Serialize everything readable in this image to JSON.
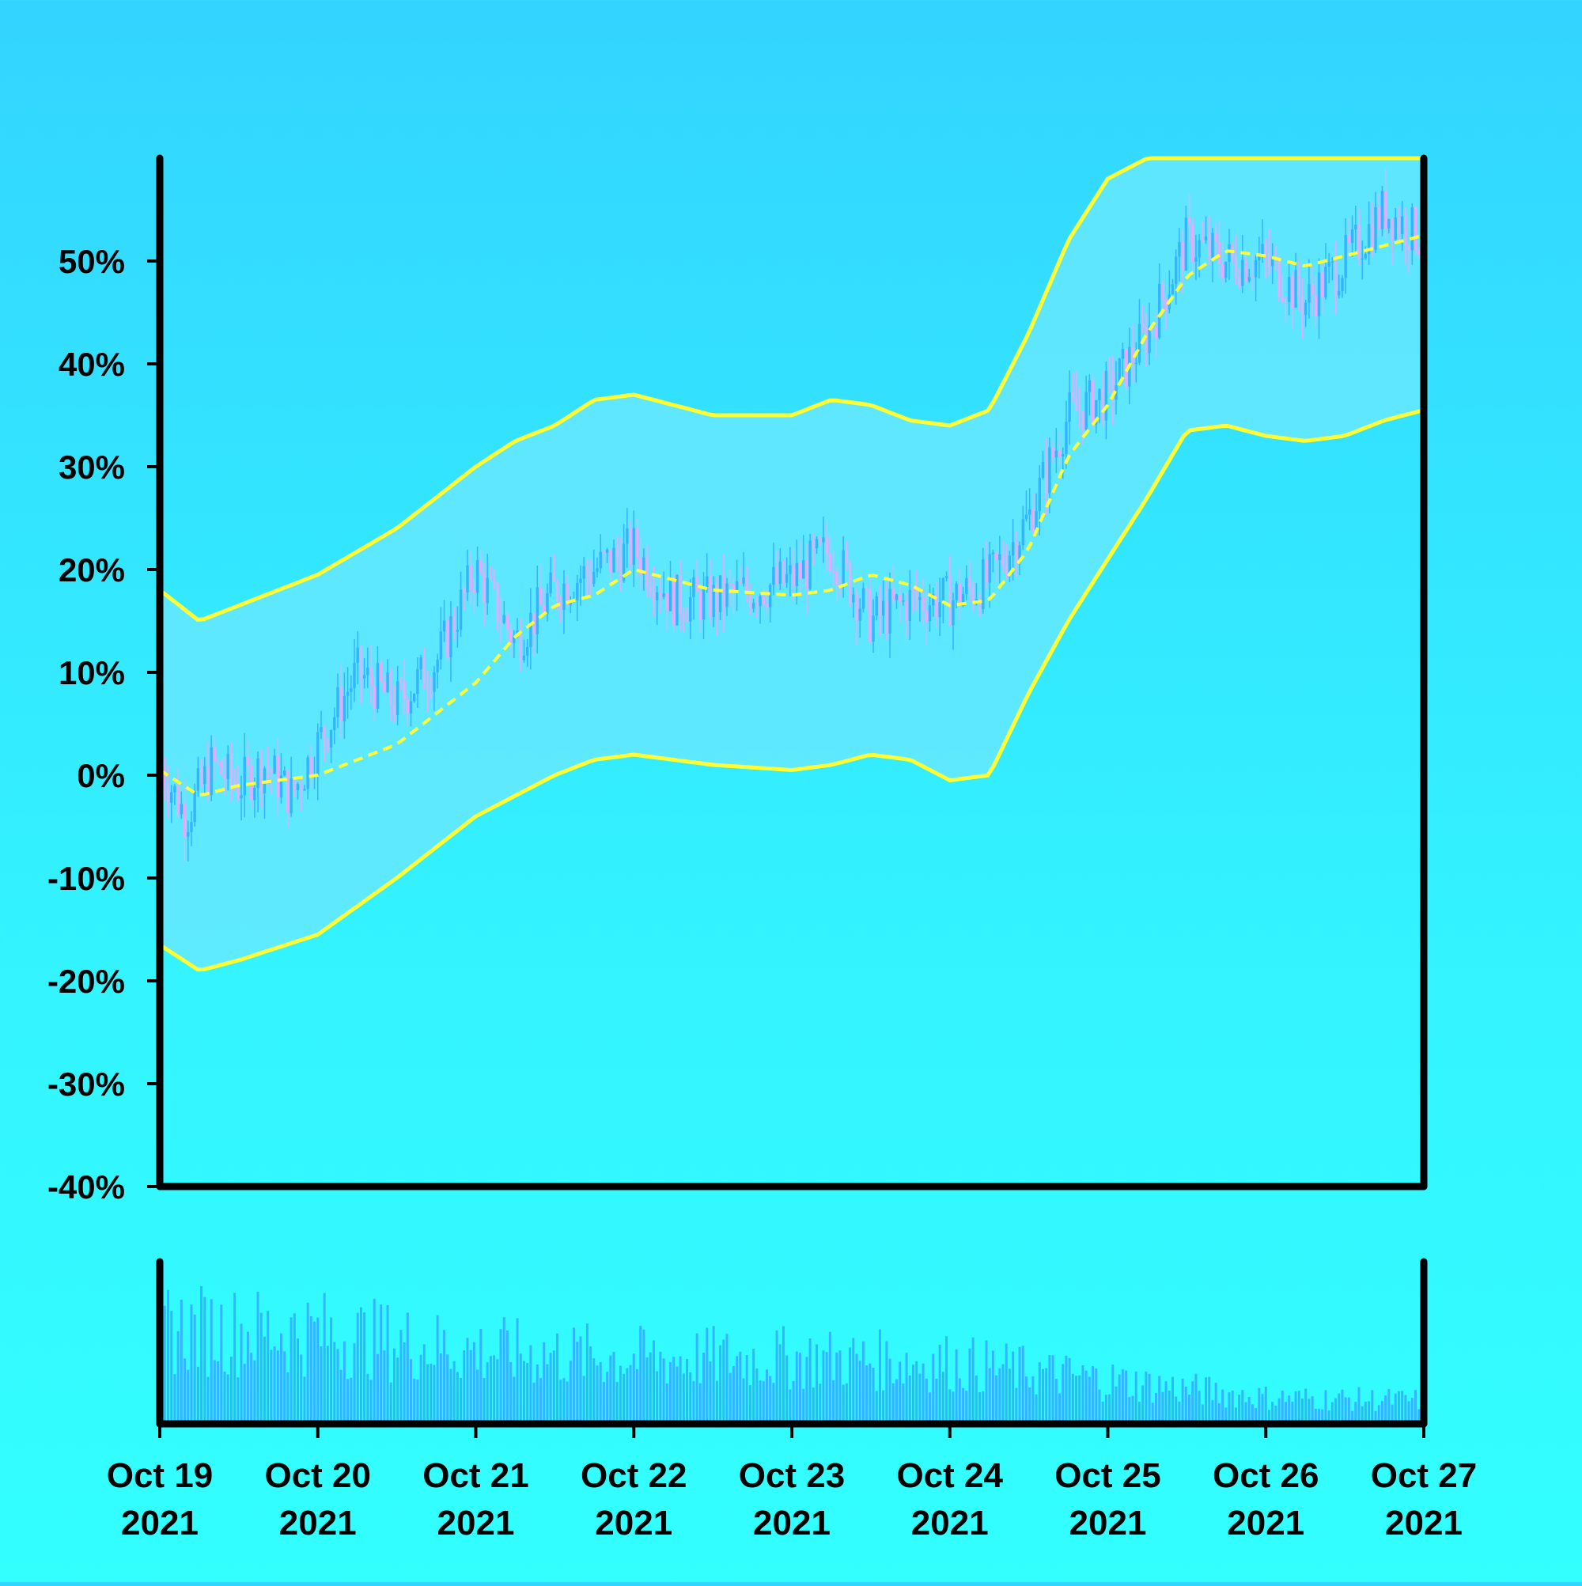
{
  "colors": {
    "band_line": "#ffff33",
    "band_fill": "#66e8ff",
    "up_candle": "#33b4ff",
    "down_candle": "#e6aaff",
    "volume": "#33b4ff",
    "axis": "#000000"
  },
  "chart_data": {
    "type": "candlestick",
    "title": "",
    "y_axis": {
      "ticks": [
        "-40%",
        "-30%",
        "-20%",
        "-10%",
        "0%",
        "10%",
        "20%",
        "30%",
        "40%",
        "50%"
      ],
      "tick_values": [
        -40,
        -30,
        -20,
        -10,
        0,
        10,
        20,
        30,
        40,
        50
      ],
      "range": [
        -40,
        60
      ]
    },
    "x_axis": {
      "ticks": [
        {
          "date": "Oct 19",
          "year": "2021"
        },
        {
          "date": "Oct 20",
          "year": "2021"
        },
        {
          "date": "Oct 21",
          "year": "2021"
        },
        {
          "date": "Oct 22",
          "year": "2021"
        },
        {
          "date": "Oct 23",
          "year": "2021"
        },
        {
          "date": "Oct 24",
          "year": "2021"
        },
        {
          "date": "Oct 25",
          "year": "2021"
        },
        {
          "date": "Oct 26",
          "year": "2021"
        },
        {
          "date": "Oct 27",
          "year": "2021"
        }
      ],
      "range": [
        "2021-10-19",
        "2021-10-27"
      ]
    },
    "series": [
      {
        "type": "middle_band",
        "x": [
          "2021-10-19 00:00",
          "2021-10-19 06:00",
          "2021-10-19 12:00",
          "2021-10-20 00:00",
          "2021-10-20 12:00",
          "2021-10-21 00:00",
          "2021-10-21 06:00",
          "2021-10-21 12:00",
          "2021-10-21 18:00",
          "2021-10-22 00:00",
          "2021-10-22 12:00",
          "2021-10-23 00:00",
          "2021-10-23 06:00",
          "2021-10-23 12:00",
          "2021-10-23 18:00",
          "2021-10-24 00:00",
          "2021-10-24 06:00",
          "2021-10-24 12:00",
          "2021-10-24 18:00",
          "2021-10-25 00:00",
          "2021-10-25 06:00",
          "2021-10-25 12:00",
          "2021-10-25 18:00",
          "2021-10-26 00:00",
          "2021-10-26 06:00",
          "2021-10-26 12:00",
          "2021-10-26 18:00",
          "2021-10-27 00:00"
        ],
        "values": [
          0.5,
          -2,
          -1,
          0,
          3,
          9,
          13.5,
          16.5,
          17.5,
          20,
          18,
          17.5,
          18,
          19.5,
          18.5,
          16.5,
          17,
          22,
          31,
          36,
          43,
          48.5,
          51,
          50.5,
          49.5,
          50.5,
          51.5,
          52.5
        ]
      },
      {
        "type": "upper_band",
        "x": [
          "2021-10-19 00:00",
          "2021-10-19 06:00",
          "2021-10-19 12:00",
          "2021-10-20 00:00",
          "2021-10-20 12:00",
          "2021-10-21 00:00",
          "2021-10-21 06:00",
          "2021-10-21 12:00",
          "2021-10-21 18:00",
          "2021-10-22 00:00",
          "2021-10-22 12:00",
          "2021-10-23 00:00",
          "2021-10-23 06:00",
          "2021-10-23 12:00",
          "2021-10-23 18:00",
          "2021-10-24 00:00",
          "2021-10-24 06:00",
          "2021-10-24 12:00",
          "2021-10-24 18:00",
          "2021-10-25 00:00",
          "2021-10-25 06:00",
          "2021-10-25 12:00",
          "2021-10-25 18:00",
          "2021-10-26 00:00",
          "2021-10-26 06:00",
          "2021-10-26 12:00",
          "2021-10-26 18:00",
          "2021-10-27 00:00"
        ],
        "values": [
          18,
          15,
          16.5,
          19.5,
          24,
          30,
          32.5,
          34,
          36.5,
          37,
          35,
          35,
          36.5,
          36,
          34.5,
          34,
          35.5,
          43,
          52,
          58,
          60,
          60,
          60,
          60,
          60,
          60,
          60,
          60
        ]
      },
      {
        "type": "lower_band",
        "x": [
          "2021-10-19 00:00",
          "2021-10-19 06:00",
          "2021-10-19 12:00",
          "2021-10-20 00:00",
          "2021-10-20 12:00",
          "2021-10-21 00:00",
          "2021-10-21 06:00",
          "2021-10-21 12:00",
          "2021-10-21 18:00",
          "2021-10-22 00:00",
          "2021-10-22 12:00",
          "2021-10-23 00:00",
          "2021-10-23 06:00",
          "2021-10-23 12:00",
          "2021-10-23 18:00",
          "2021-10-24 00:00",
          "2021-10-24 06:00",
          "2021-10-24 12:00",
          "2021-10-24 18:00",
          "2021-10-25 00:00",
          "2021-10-25 06:00",
          "2021-10-25 12:00",
          "2021-10-25 18:00",
          "2021-10-26 00:00",
          "2021-10-26 06:00",
          "2021-10-26 12:00",
          "2021-10-26 18:00",
          "2021-10-27 00:00"
        ],
        "values": [
          -16.5,
          -19,
          -18,
          -15.5,
          -10,
          -4,
          -2,
          0,
          1.5,
          2,
          1,
          0.5,
          1,
          2,
          1.5,
          -0.5,
          0,
          8,
          15,
          21,
          27,
          33.5,
          34,
          33,
          32.5,
          33,
          34.5,
          35.5
        ]
      },
      {
        "type": "price_trend",
        "x": [
          "2021-10-19 00:00",
          "2021-10-19 04:00",
          "2021-10-19 08:00",
          "2021-10-19 12:00",
          "2021-10-19 16:00",
          "2021-10-19 20:00",
          "2021-10-20 00:00",
          "2021-10-20 06:00",
          "2021-10-20 12:00",
          "2021-10-20 18:00",
          "2021-10-21 00:00",
          "2021-10-21 06:00",
          "2021-10-21 12:00",
          "2021-10-21 18:00",
          "2021-10-22 00:00",
          "2021-10-22 06:00",
          "2021-10-22 12:00",
          "2021-10-22 18:00",
          "2021-10-23 00:00",
          "2021-10-23 06:00",
          "2021-10-23 12:00",
          "2021-10-23 18:00",
          "2021-10-24 00:00",
          "2021-10-24 06:00",
          "2021-10-24 12:00",
          "2021-10-24 18:00",
          "2021-10-25 00:00",
          "2021-10-25 06:00",
          "2021-10-25 12:00",
          "2021-10-25 18:00",
          "2021-10-26 00:00",
          "2021-10-26 06:00",
          "2021-10-26 12:00",
          "2021-10-26 18:00",
          "2021-10-27 00:00"
        ],
        "values": [
          1,
          -4,
          1,
          -1,
          1,
          -2,
          3,
          10,
          7,
          11,
          20,
          13,
          18,
          20,
          22,
          17,
          17,
          18,
          19,
          22,
          15,
          17,
          17,
          19,
          25,
          35,
          37,
          43,
          52,
          50,
          50,
          46,
          50,
          55,
          52
        ]
      }
    ],
    "volume": {
      "x_range": [
        "2021-10-19",
        "2021-10-27"
      ],
      "profile_x": [
        "2021-10-19",
        "2021-10-20",
        "2021-10-21",
        "2021-10-22",
        "2021-10-23",
        "2021-10-24",
        "2021-10-25",
        "2021-10-26",
        "2021-10-27"
      ],
      "profile_relative": [
        0.65,
        0.62,
        0.5,
        0.45,
        0.45,
        0.42,
        0.3,
        0.18,
        0.16
      ]
    },
    "grid": false,
    "legend": "none"
  }
}
